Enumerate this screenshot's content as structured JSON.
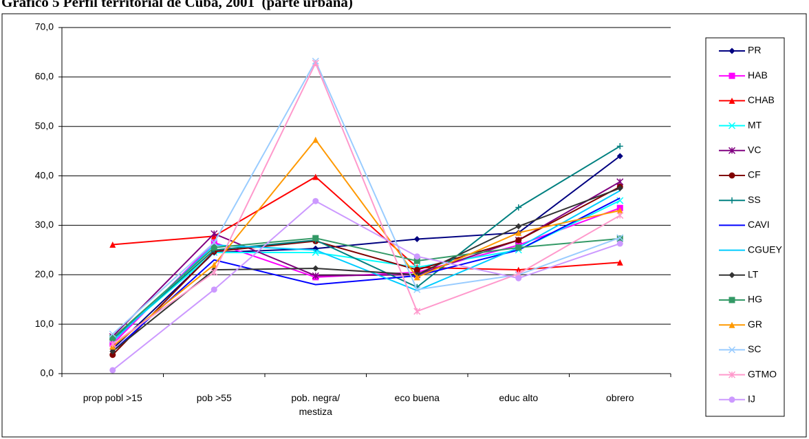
{
  "chart_data": {
    "type": "line",
    "title": "Gráfico 5 Perfil territorial de Cuba, 2001  (parte urbana)",
    "categories": [
      "prop pobl >15",
      "pob >55",
      "pob. negra/ mestiza",
      "eco buena",
      "educ alto",
      "obrero"
    ],
    "ylim": [
      0,
      70
    ],
    "yticks": [
      {
        "value": 0,
        "label": "0,0"
      },
      {
        "value": 10,
        "label": "10,0"
      },
      {
        "value": 20,
        "label": "20,0"
      },
      {
        "value": 30,
        "label": "30,0"
      },
      {
        "value": 40,
        "label": "40,0"
      },
      {
        "value": 50,
        "label": "50,0"
      },
      {
        "value": 60,
        "label": "60,0"
      },
      {
        "value": 70,
        "label": "70,0"
      }
    ],
    "grid": true,
    "legend": "right",
    "series": [
      {
        "name": "PR",
        "color": "#000080",
        "marker": "diamond",
        "values": [
          5.0,
          24.5,
          25.3,
          27.2,
          28.5,
          44.0
        ]
      },
      {
        "name": "HAB",
        "color": "#ff00ff",
        "marker": "square",
        "values": [
          6.0,
          26.5,
          19.5,
          20.5,
          26.0,
          33.5
        ]
      },
      {
        "name": "CHAB",
        "color": "#ff0000",
        "marker": "triangle",
        "values": [
          26.1,
          27.8,
          39.8,
          21.5,
          21.0,
          22.5
        ]
      },
      {
        "name": "MT",
        "color": "#00ffff",
        "marker": "x",
        "values": [
          7.0,
          24.5,
          24.5,
          21.5,
          25.0,
          35.0
        ]
      },
      {
        "name": "VC",
        "color": "#800080",
        "marker": "star",
        "values": [
          7.5,
          28.3,
          19.8,
          20.0,
          27.0,
          38.8
        ]
      },
      {
        "name": "CF",
        "color": "#800000",
        "marker": "circle",
        "values": [
          3.8,
          24.7,
          26.8,
          21.0,
          27.0,
          37.8
        ]
      },
      {
        "name": "SS",
        "color": "#008080",
        "marker": "plus",
        "values": [
          7.0,
          25.0,
          27.0,
          17.5,
          33.6,
          46.0
        ]
      },
      {
        "name": "CAVI",
        "color": "#0000ff",
        "marker": "none",
        "values": [
          4.5,
          23.0,
          18.0,
          19.8,
          25.0,
          35.5
        ]
      },
      {
        "name": "CGUEY",
        "color": "#00ccff",
        "marker": "none",
        "values": [
          6.5,
          26.0,
          25.0,
          16.8,
          25.5,
          37.0
        ]
      },
      {
        "name": "LT",
        "color": "#333333",
        "marker": "diamond",
        "values": [
          4.5,
          21.0,
          21.3,
          20.0,
          29.8,
          37.5
        ]
      },
      {
        "name": "HG",
        "color": "#339966",
        "marker": "square",
        "values": [
          7.2,
          25.5,
          27.4,
          22.8,
          25.5,
          27.3
        ]
      },
      {
        "name": "GR",
        "color": "#ff9900",
        "marker": "triangle",
        "values": [
          5.5,
          22.0,
          47.3,
          19.5,
          28.5,
          33.0
        ]
      },
      {
        "name": "SC",
        "color": "#99ccff",
        "marker": "x",
        "values": [
          8.0,
          26.5,
          63.2,
          17.0,
          20.0,
          27.5
        ]
      },
      {
        "name": "GTMO",
        "color": "#ff99cc",
        "marker": "star",
        "values": [
          6.0,
          20.5,
          62.8,
          12.6,
          20.2,
          32.0
        ]
      },
      {
        "name": "IJ",
        "color": "#cc99ff",
        "marker": "circle",
        "values": [
          0.7,
          17.0,
          34.9,
          23.7,
          19.3,
          26.3
        ]
      }
    ]
  }
}
